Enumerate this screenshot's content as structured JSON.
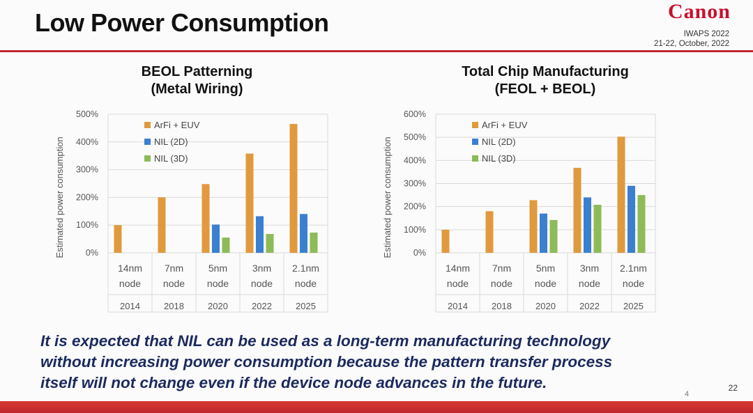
{
  "header": {
    "title": "Low Power Consumption",
    "logo": "Canon",
    "conference_line1": "IWAPS 2022",
    "conference_line2": "21-22, October, 2022"
  },
  "colors": {
    "arfi": "#e09a3d",
    "nil2d": "#3b7fd0",
    "nil3d": "#8dbb58",
    "accent": "#c0272d",
    "message": "#1b2a5e"
  },
  "chart_titles": [
    {
      "line1": "BEOL Patterning",
      "line2": "(Metal Wiring)"
    },
    {
      "line1": "Total Chip Manufacturing",
      "line2": "(FEOL + BEOL)"
    }
  ],
  "chart_data": [
    {
      "type": "bar",
      "title": "BEOL Patterning (Metal Wiring)",
      "ylabel": "Estimated power consumption",
      "ylim": [
        0,
        500
      ],
      "yticks": [
        "0%",
        "100%",
        "200%",
        "300%",
        "400%",
        "500%"
      ],
      "categories": [
        {
          "line1": "14nm",
          "line2": "node",
          "year": "2014"
        },
        {
          "line1": "7nm",
          "line2": "node",
          "year": "2018"
        },
        {
          "line1": "5nm",
          "line2": "node",
          "year": "2020"
        },
        {
          "line1": "3nm",
          "line2": "node",
          "year": "2022"
        },
        {
          "line1": "2.1nm",
          "line2": "node",
          "year": "2025"
        }
      ],
      "series": [
        {
          "name": "ArFi + EUV",
          "values": [
            100,
            200,
            248,
            358,
            465
          ]
        },
        {
          "name": "NIL (2D)",
          "values": [
            null,
            null,
            102,
            132,
            140
          ]
        },
        {
          "name": "NIL (3D)",
          "values": [
            null,
            null,
            55,
            68,
            73
          ]
        }
      ]
    },
    {
      "type": "bar",
      "title": "Total Chip Manufacturing (FEOL + BEOL)",
      "ylabel": "Estimated power consumption",
      "ylim": [
        0,
        600
      ],
      "yticks": [
        "0%",
        "100%",
        "200%",
        "300%",
        "400%",
        "500%",
        "600%"
      ],
      "categories": [
        {
          "line1": "14nm",
          "line2": "node",
          "year": "2014"
        },
        {
          "line1": "7nm",
          "line2": "node",
          "year": "2018"
        },
        {
          "line1": "5nm",
          "line2": "node",
          "year": "2020"
        },
        {
          "line1": "3nm",
          "line2": "node",
          "year": "2022"
        },
        {
          "line1": "2.1nm",
          "line2": "node",
          "year": "2025"
        }
      ],
      "series": [
        {
          "name": "ArFi + EUV",
          "values": [
            100,
            180,
            228,
            368,
            503
          ]
        },
        {
          "name": "NIL (2D)",
          "values": [
            null,
            null,
            170,
            240,
            290
          ]
        },
        {
          "name": "NIL (3D)",
          "values": [
            null,
            null,
            142,
            208,
            250
          ]
        }
      ]
    }
  ],
  "message": {
    "line1": "It is expected that NIL can be used as a long-term manufacturing technology",
    "line2": "without increasing power consumption because the pattern transfer process",
    "line3": "itself will not change even if the device node advances in the future."
  },
  "footer": {
    "page_number": "22",
    "small_number": "4"
  }
}
